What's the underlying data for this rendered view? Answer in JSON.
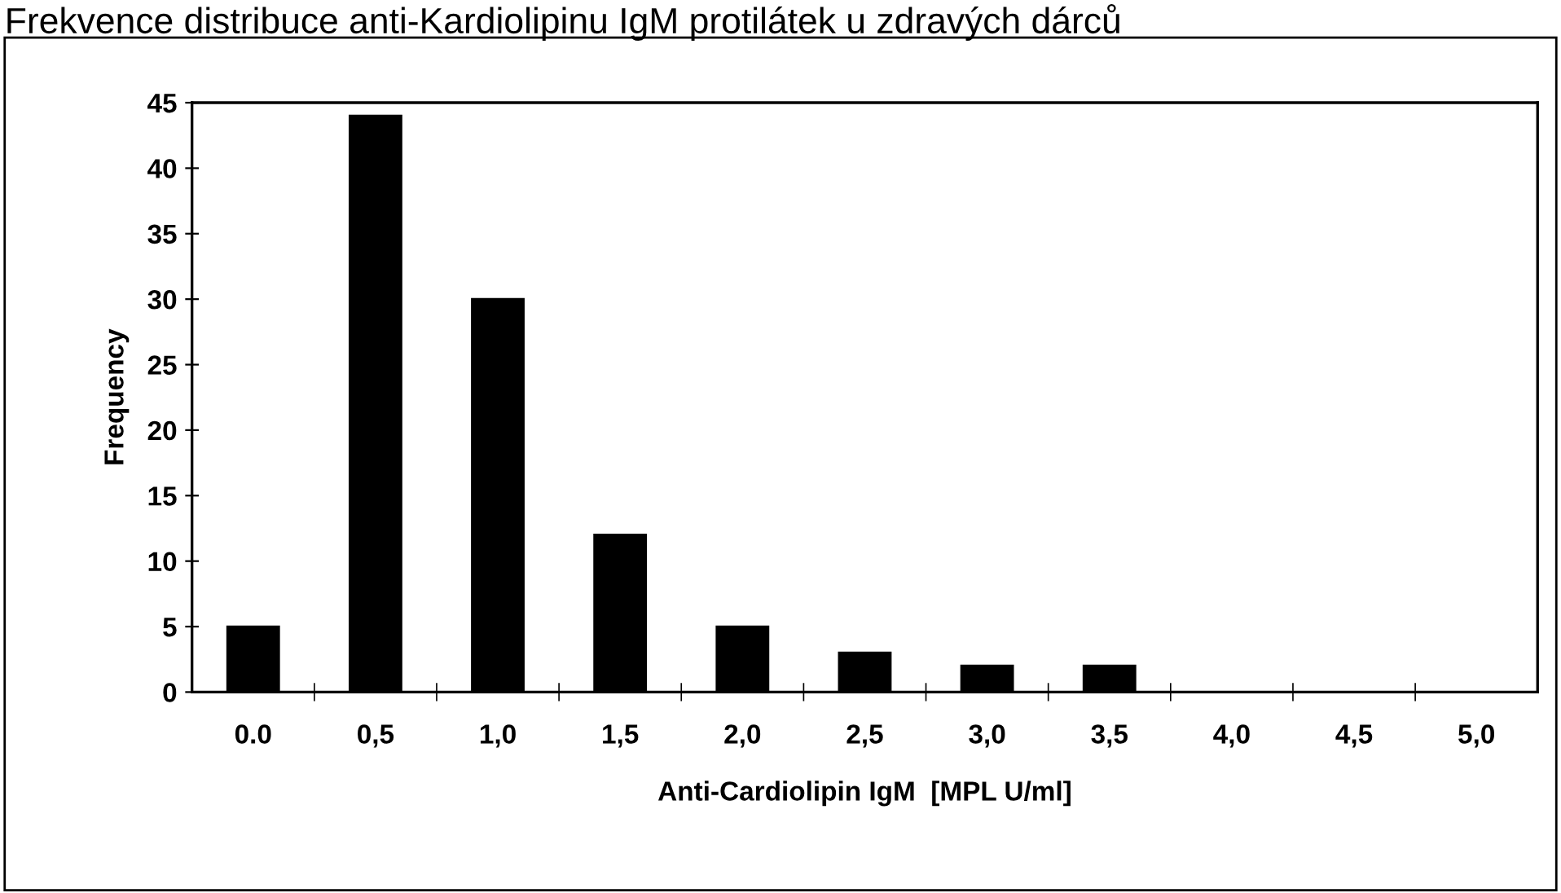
{
  "chart_data": {
    "type": "bar",
    "title": "Frekvence distribuce anti-Kardiolipinu IgM protilátek u zdravých dárců",
    "xlabel": "Anti-Cardiolipin IgM  [MPL U/ml]",
    "ylabel": "Frequency",
    "categories": [
      "0.0",
      "0,5",
      "1,0",
      "1,5",
      "2,0",
      "2,5",
      "3,0",
      "3,5",
      "4,0",
      "4,5",
      "5,0"
    ],
    "values": [
      5,
      44,
      30,
      12,
      5,
      3,
      2,
      2,
      0,
      0,
      0
    ],
    "color": "#000000",
    "ylim": [
      0,
      45
    ],
    "yticks": [
      0,
      5,
      10,
      15,
      20,
      25,
      30,
      35,
      40,
      45
    ],
    "grid": false
  }
}
